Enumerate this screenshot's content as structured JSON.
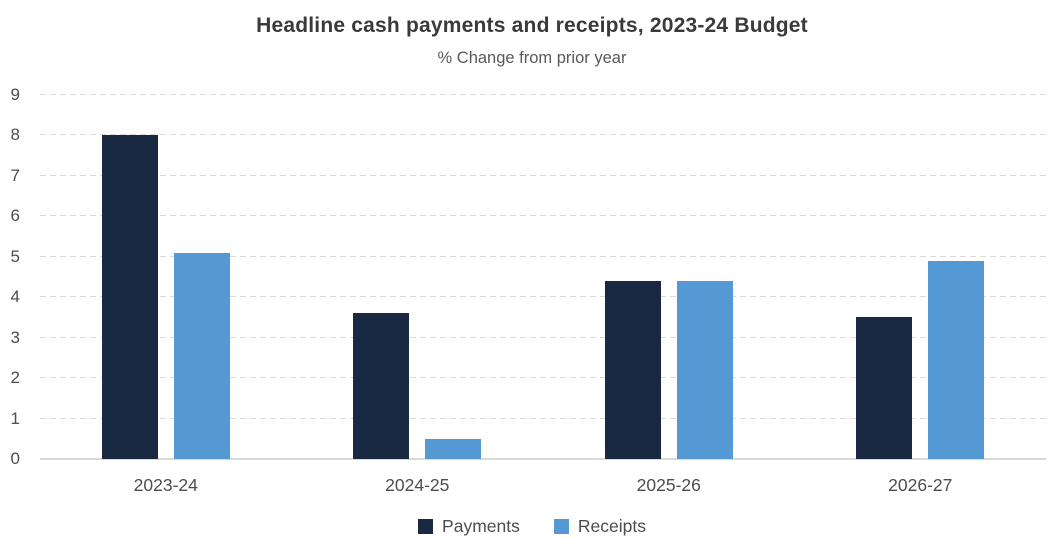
{
  "title": "Headline cash payments and receipts, 2023-24 Budget",
  "subtitle": "% Change from prior year",
  "colors": {
    "payments": "#1a2942",
    "receipts": "#5499d3",
    "gridline": "#d9d9d9",
    "axis_line": "#d9d9d9",
    "title_text": "#3a3a3a",
    "tick_text": "#4d4d4d"
  },
  "chart_data": {
    "type": "bar",
    "title": "Headline cash payments and receipts, 2023-24 Budget",
    "subtitle": "% Change from prior year",
    "categories": [
      "2023-24",
      "2024-25",
      "2025-26",
      "2026-27"
    ],
    "series": [
      {
        "name": "Payments",
        "color_key": "payments",
        "values": [
          8.0,
          3.6,
          4.4,
          3.5
        ]
      },
      {
        "name": "Receipts",
        "color_key": "receipts",
        "values": [
          5.1,
          0.5,
          4.4,
          4.9
        ]
      }
    ],
    "xlabel": "",
    "ylabel": "",
    "ylim": [
      0,
      9
    ],
    "yticks": [
      0,
      1,
      2,
      3,
      4,
      5,
      6,
      7,
      8,
      9
    ],
    "grid": "horizontal-dashed",
    "legend_position": "bottom"
  },
  "legend": {
    "items": [
      {
        "label": "Payments",
        "color_key": "payments"
      },
      {
        "label": "Receipts",
        "color_key": "receipts"
      }
    ]
  }
}
